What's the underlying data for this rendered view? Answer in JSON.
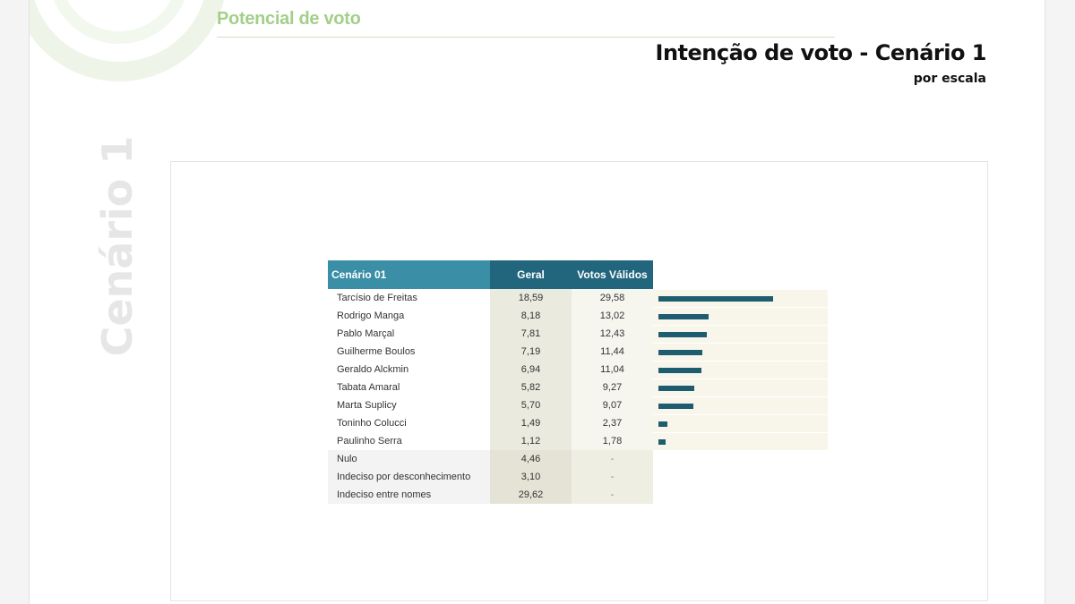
{
  "header": {
    "section_title": "Potencial de voto",
    "main_title": "Intenção de voto - Cenário 1",
    "subtitle": "por escala"
  },
  "side_label": "Cenário 1",
  "colors": {
    "accent_green": "#a3cf8a",
    "header_teal": "#3a8ea6",
    "header_dark": "#22667e",
    "bar": "#1e5c70"
  },
  "table": {
    "headers": [
      "Cenário 01",
      "Geral",
      "Votos Válidos"
    ],
    "rows": [
      {
        "name": "Tarcísio de Freitas",
        "geral": "18,59",
        "validos": "29,58",
        "bar": 29.58
      },
      {
        "name": "Rodrigo Manga",
        "geral": "8,18",
        "validos": "13,02",
        "bar": 13.02
      },
      {
        "name": "Pablo Marçal",
        "geral": "7,81",
        "validos": "12,43",
        "bar": 12.43
      },
      {
        "name": "Guilherme Boulos",
        "geral": "7,19",
        "validos": "11,44",
        "bar": 11.44
      },
      {
        "name": "Geraldo Alckmin",
        "geral": "6,94",
        "validos": "11,04",
        "bar": 11.04
      },
      {
        "name": "Tabata Amaral",
        "geral": "5,82",
        "validos": "9,27",
        "bar": 9.27
      },
      {
        "name": "Marta Suplicy",
        "geral": "5,70",
        "validos": "9,07",
        "bar": 9.07
      },
      {
        "name": "Toninho Colucci",
        "geral": "1,49",
        "validos": "2,37",
        "bar": 2.37
      },
      {
        "name": "Paulinho Serra",
        "geral": "1,12",
        "validos": "1,78",
        "bar": 1.78
      },
      {
        "name": "Nulo",
        "geral": "4,46",
        "validos": "-"
      },
      {
        "name": "Indeciso por desconhecimento",
        "geral": "3,10",
        "validos": "-"
      },
      {
        "name": "Indeciso entre nomes",
        "geral": "29,62",
        "validos": "-"
      }
    ]
  }
}
